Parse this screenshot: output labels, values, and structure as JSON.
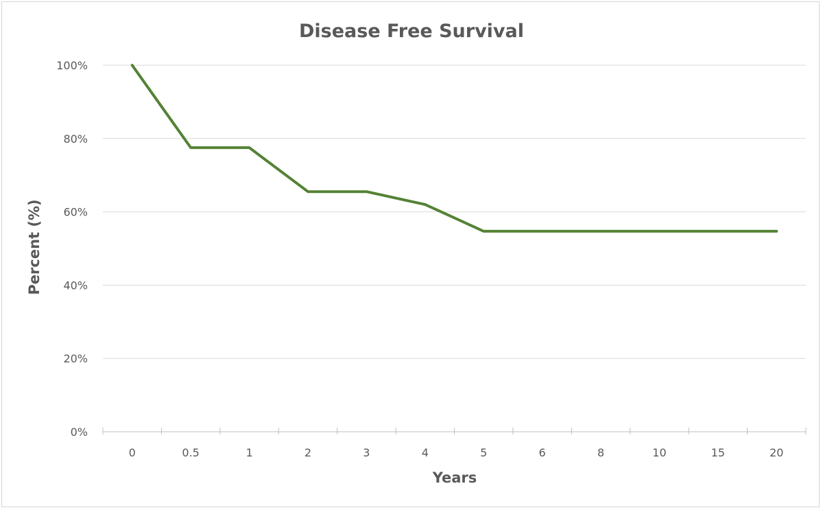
{
  "chart_data": {
    "type": "line",
    "title": "Disease Free Survival",
    "xlabel": "Years",
    "ylabel": "Percent (%)",
    "categories": [
      "0",
      "0.5",
      "1",
      "2",
      "3",
      "4",
      "5",
      "6",
      "8",
      "10",
      "15",
      "20"
    ],
    "series": [
      {
        "values": [
          100,
          77.5,
          77.5,
          65.5,
          65.5,
          62,
          54.7,
          54.7,
          54.7,
          54.7,
          54.7,
          54.7
        ],
        "color": "#548235"
      }
    ],
    "ylim": [
      0,
      100
    ],
    "yticks": [
      0,
      20,
      40,
      60,
      80,
      100
    ],
    "ytick_labels": [
      "0%",
      "20%",
      "40%",
      "60%",
      "80%",
      "100%"
    ],
    "grid": true,
    "legend": "none"
  }
}
